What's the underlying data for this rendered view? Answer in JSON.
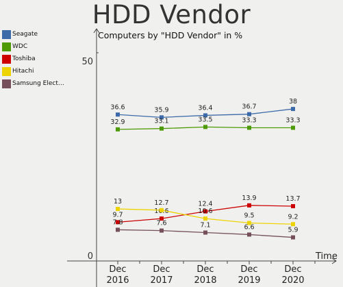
{
  "title": "HDD Vendor",
  "chart_data": {
    "type": "line",
    "subtitle": "Computers by \"HDD Vendor\" in %",
    "xlabel": "Time",
    "ylabel": "",
    "categories": [
      "Dec\n2016",
      "Dec\n2017",
      "Dec\n2018",
      "Dec\n2019",
      "Dec\n2020"
    ],
    "ylim": [
      0,
      60
    ],
    "yticks": [
      0,
      50
    ],
    "grid": false,
    "legend_position": "left",
    "series": [
      {
        "name": "Seagate",
        "color": "#3c6aa8",
        "values": [
          36.6,
          35.9,
          36.4,
          36.7,
          38
        ]
      },
      {
        "name": "WDC",
        "color": "#4e9a06",
        "values": [
          32.9,
          33.1,
          33.5,
          33.3,
          33.3
        ]
      },
      {
        "name": "Toshiba",
        "color": "#cc0000",
        "values": [
          9.7,
          10.6,
          12.4,
          13.9,
          13.7
        ]
      },
      {
        "name": "Hitachi",
        "color": "#edd400",
        "values": [
          13,
          12.7,
          10.6,
          9.5,
          9.2
        ]
      },
      {
        "name": "Samsung Elect…",
        "color": "#75505b",
        "values": [
          7.8,
          7.6,
          7.1,
          6.6,
          5.9
        ]
      }
    ],
    "data_labels": [
      [
        "36.6",
        "35.9",
        "36.4",
        "36.7",
        "38"
      ],
      [
        "32.9",
        "33.1",
        "33.5",
        "33.3",
        "33.3"
      ],
      [
        "9.7",
        "10.6",
        "12.4",
        "13.9",
        "13.7"
      ],
      [
        "13",
        "12.7",
        "10.6",
        "9.5",
        "9.2"
      ],
      [
        "7.8",
        "7.6",
        "7.1",
        "6.6",
        "5.9"
      ]
    ]
  }
}
